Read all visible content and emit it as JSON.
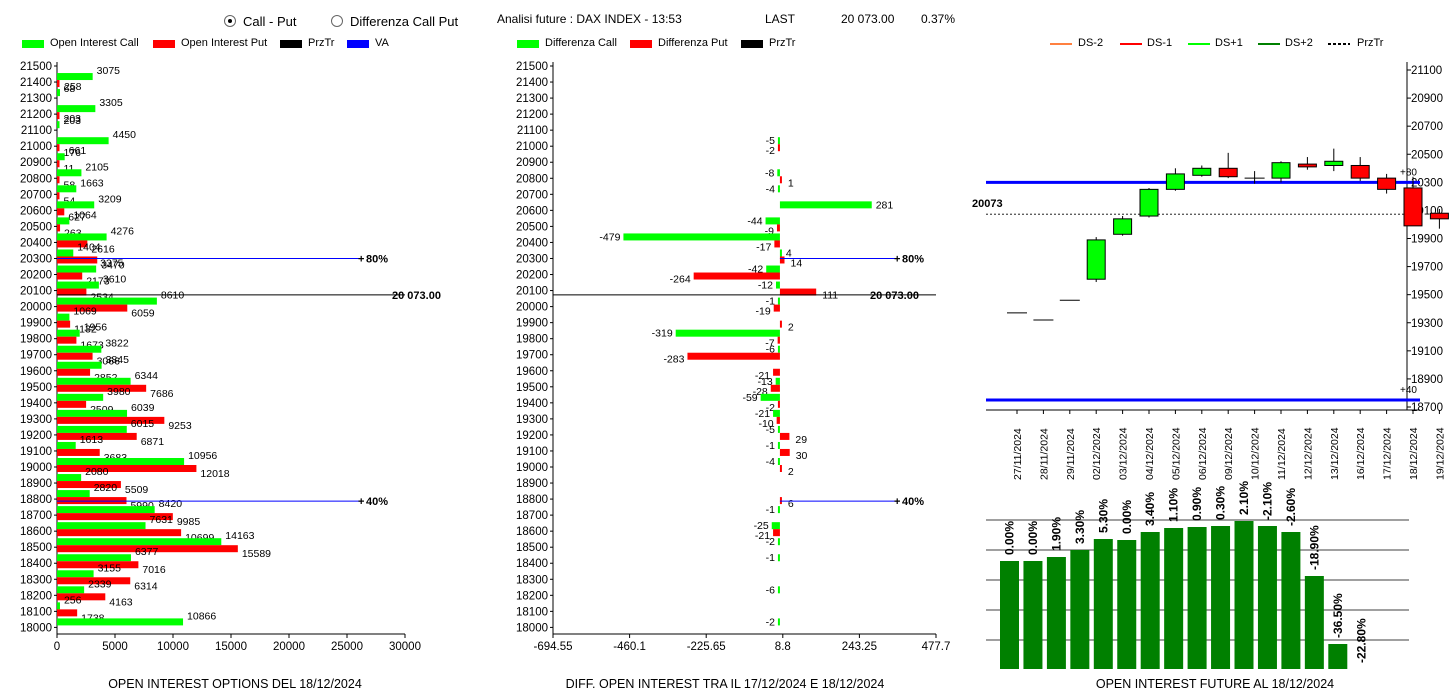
{
  "header": {
    "radio_call_put": "Call - Put",
    "radio_diff": "Differenza Call Put",
    "analysis": "Analisi future : DAX INDEX - 13:53",
    "last_label": "LAST",
    "last_value": "20 073.00",
    "last_pct": "0.37%"
  },
  "legend1": [
    {
      "label": "Open Interest Call",
      "color": "#00ff00"
    },
    {
      "label": "Open Interest Put",
      "color": "#ff0000"
    },
    {
      "label": "PrzTr",
      "color": "#000000"
    },
    {
      "label": "VA",
      "color": "#0000ff"
    }
  ],
  "legend2": [
    {
      "label": "Differenza Call",
      "color": "#00ff00"
    },
    {
      "label": "Differenza Put",
      "color": "#ff0000"
    },
    {
      "label": "PrzTr",
      "color": "#000000"
    }
  ],
  "legend3": [
    {
      "label": "DS-2",
      "color": "#ff8040",
      "dashed": false
    },
    {
      "label": "DS-1",
      "color": "#ff0000",
      "dashed": false
    },
    {
      "label": "DS+1",
      "color": "#00ff00",
      "dashed": false
    },
    {
      "label": "DS+2",
      "color": "#008000",
      "dashed": false
    },
    {
      "label": "PrzTr",
      "color": "#000000",
      "dashed": true
    }
  ],
  "colors": {
    "call": "#00ff00",
    "put": "#ff0000",
    "va": "#0000ff",
    "przTr": "#000000",
    "bar": "#008000"
  },
  "chart_data": [
    {
      "type": "bar",
      "title": "OPEN INTEREST OPTIONS DEL 18/12/2024",
      "orientation": "horizontal",
      "strikes": [
        21500,
        21400,
        21300,
        21200,
        21100,
        21000,
        20900,
        20800,
        20700,
        20600,
        20500,
        20400,
        20300,
        20200,
        20100,
        20000,
        19900,
        19800,
        19700,
        19600,
        19500,
        19400,
        19300,
        19200,
        19100,
        19000,
        18900,
        18800,
        18700,
        18600,
        18500,
        18400,
        18300,
        18200,
        18100,
        18000
      ],
      "series": [
        {
          "name": "Open Interest Call",
          "values": [
            null,
            3075,
            258,
            3305,
            203,
            4450,
            661,
            2105,
            1663,
            3209,
            1064,
            4276,
            1404,
            3375,
            3610,
            8610,
            1069,
            1956,
            3822,
            3845,
            6344,
            3980,
            6039,
            6015,
            1613,
            10956,
            2080,
            2820,
            8420,
            7631,
            14163,
            6377,
            3155,
            2339,
            256,
            10866
          ]
        },
        {
          "name": "Open Interest Put",
          "values": [
            null,
            68,
            null,
            203,
            null,
            176,
            11,
            58,
            54,
            627,
            263,
            2616,
            3470,
            2173,
            2534,
            6059,
            1132,
            1673,
            3066,
            2852,
            7686,
            2509,
            9253,
            6871,
            3683,
            12018,
            5509,
            5990,
            9985,
            10699,
            15589,
            7016,
            6314,
            4163,
            1738,
            null
          ]
        }
      ],
      "xticks": [
        "0",
        "5000",
        "10000",
        "15000",
        "20000",
        "25000",
        "30000"
      ],
      "xlim": [
        0,
        30000
      ],
      "ylim": [
        18000,
        21500
      ],
      "annotations": [
        {
          "label": "80%",
          "strike": 20300,
          "color": "#0000ff"
        },
        {
          "label": "20 073.00",
          "strike": 20073,
          "color": "#000000"
        },
        {
          "label": "40%",
          "strike": 18750,
          "color": "#0000ff"
        }
      ]
    },
    {
      "type": "bar",
      "title": "DIFF. OPEN INTEREST TRA IL 17/12/2024 E 18/12/2024",
      "orientation": "horizontal",
      "strikes": [
        21500,
        21400,
        21300,
        21200,
        21100,
        21000,
        20900,
        20800,
        20700,
        20600,
        20500,
        20400,
        20300,
        20200,
        20100,
        20000,
        19900,
        19800,
        19700,
        19600,
        19500,
        19400,
        19300,
        19200,
        19100,
        19000,
        18900,
        18800,
        18700,
        18600,
        18500,
        18400,
        18300,
        18200,
        18100,
        18000
      ],
      "series": [
        {
          "name": "Differenza Call",
          "values": [
            null,
            null,
            null,
            null,
            null,
            -5,
            null,
            -8,
            -4,
            281,
            -44,
            -479,
            4,
            -42,
            -12,
            -1,
            null,
            -319,
            -6,
            null,
            -13,
            -59,
            -21,
            -5,
            -1,
            -4,
            null,
            null,
            -1,
            -25,
            -2,
            -1,
            null,
            -6,
            null,
            -2
          ]
        },
        {
          "name": "Differenza Put",
          "values": [
            null,
            null,
            null,
            null,
            null,
            -2,
            null,
            1,
            null,
            null,
            -9,
            -17,
            14,
            -264,
            111,
            -19,
            2,
            -7,
            -283,
            -21,
            -28,
            -2,
            -10,
            29,
            30,
            2,
            null,
            6,
            null,
            -21,
            null,
            null,
            null,
            null,
            null,
            null
          ]
        }
      ],
      "xticks": [
        "-694.55",
        "-460.1",
        "-225.65",
        "8.8",
        "243.25",
        "477.7"
      ],
      "xlim": [
        -694.55,
        477.7
      ],
      "ylim": [
        18000,
        21500
      ],
      "annotations": [
        {
          "label": "80%",
          "strike": 20300,
          "color": "#0000ff"
        },
        {
          "label": "20 073.00",
          "strike": 20073,
          "color": "#000000"
        },
        {
          "label": "40%",
          "strike": 18750,
          "color": "#0000ff"
        }
      ]
    },
    {
      "type": "candlestick",
      "dates": [
        "27/11/2024",
        "28/11/2024",
        "29/11/2024",
        "02/12/2024",
        "03/12/2024",
        "04/12/2024",
        "05/12/2024",
        "06/12/2024",
        "09/12/2024",
        "10/12/2024",
        "11/12/2024",
        "12/12/2024",
        "13/12/2024",
        "16/12/2024",
        "17/12/2024",
        "18/12/2024",
        "19/12/2024"
      ],
      "ohlc": [
        [
          19370,
          19370,
          19370,
          19370
        ],
        [
          19320,
          19320,
          19320,
          19320
        ],
        [
          19460,
          19460,
          19460,
          19460
        ],
        [
          19610,
          19910,
          19590,
          19890
        ],
        [
          19930,
          20060,
          19920,
          20040
        ],
        [
          20060,
          20260,
          20050,
          20250
        ],
        [
          20250,
          20400,
          20240,
          20360
        ],
        [
          20350,
          20420,
          20340,
          20400
        ],
        [
          20400,
          20510,
          20330,
          20340
        ],
        [
          20330,
          20380,
          20290,
          20330
        ],
        [
          20330,
          20450,
          20300,
          20440
        ],
        [
          20430,
          20480,
          20390,
          20410
        ],
        [
          20420,
          20540,
          20380,
          20450
        ],
        [
          20420,
          20480,
          20310,
          20330
        ],
        [
          20330,
          20360,
          20220,
          20250
        ],
        [
          20260,
          20340,
          19990,
          19990
        ],
        [
          20080,
          20110,
          19970,
          20040
        ]
      ],
      "yticks": [
        "21100",
        "20900",
        "20700",
        "20500",
        "20300",
        "20100",
        "19900",
        "19700",
        "19500",
        "19300",
        "19100",
        "18900",
        "18700"
      ],
      "ylim": [
        18700,
        21100
      ],
      "przTr": 20073,
      "przTr_label": "20073",
      "va_lines": [
        {
          "value": 20300,
          "label": "+80"
        },
        {
          "value": 18750,
          "label": "+40"
        }
      ]
    },
    {
      "type": "bar",
      "title": "OPEN INTEREST FUTURE AL 18/12/2024",
      "categories": [
        "27/11/2024",
        "28/11/2024",
        "29/11/2024",
        "02/12/2024",
        "03/12/2024",
        "04/12/2024",
        "05/12/2024",
        "06/12/2024",
        "09/12/2024",
        "10/12/2024",
        "11/12/2024",
        "12/12/2024",
        "13/12/2024",
        "16/12/2024",
        "17/12/2024",
        "18/12/2024",
        "19/12/2024"
      ],
      "values": [
        0,
        0,
        1.9,
        3.3,
        5.3,
        0,
        3.4,
        1.1,
        0.9,
        0.3,
        2.1,
        -2.1,
        -2.6,
        -18.9,
        -36.5,
        -22.8,
        null
      ],
      "labels": [
        "0.00%",
        "0.00%",
        "1.90%",
        "3.30%",
        "5.30%",
        "0.00%",
        "3.40%",
        "1.10%",
        "0.90%",
        "0.30%",
        "2.10%",
        "-2.10%",
        "-2.60%",
        "-18.90%",
        "-36.50%",
        "-22.80%",
        ""
      ]
    }
  ]
}
